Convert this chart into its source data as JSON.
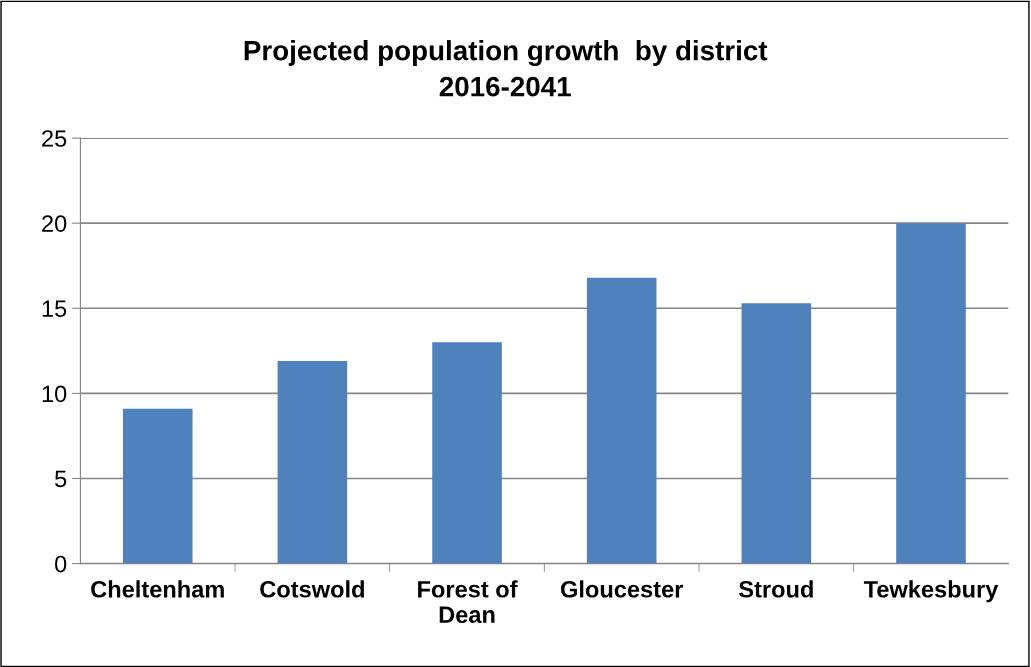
{
  "chart_data": {
    "type": "bar",
    "title": "Projected population growth  by district\n2016-2041",
    "categories": [
      "Cheltenham",
      "Cotswold",
      "Forest of\nDean",
      "Gloucester",
      "Stroud",
      "Tewkesbury"
    ],
    "values": [
      9.1,
      11.9,
      13.0,
      16.8,
      15.3,
      20.0
    ],
    "color": "#4f81bd",
    "ylim": [
      0,
      25
    ],
    "yticks": [
      0,
      5,
      10,
      15,
      20,
      25
    ],
    "grid": "y",
    "legend": false
  }
}
